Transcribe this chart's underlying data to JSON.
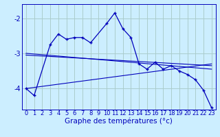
{
  "background_color": "#cceeff",
  "grid_color": "#aacccc",
  "line_color": "#0000bb",
  "xlabel": "Graphe des températures (°c)",
  "xlabel_fontsize": 7.5,
  "tick_fontsize": 6.0,
  "ytick_labels": [
    "-4",
    "-3",
    "-2"
  ],
  "ytick_values": [
    -4,
    -3,
    -2
  ],
  "xlim": [
    -0.5,
    23.5
  ],
  "ylim": [
    -4.6,
    -1.6
  ],
  "series1_x": [
    0,
    1,
    3,
    4,
    5,
    6,
    7,
    8,
    10,
    11,
    12,
    13,
    14,
    15,
    16,
    17,
    18,
    19,
    20,
    21,
    22,
    23
  ],
  "series1_y": [
    -4.0,
    -4.2,
    -2.75,
    -2.45,
    -2.6,
    -2.55,
    -2.55,
    -2.7,
    -2.15,
    -1.85,
    -2.3,
    -2.55,
    -3.3,
    -3.45,
    -3.25,
    -3.45,
    -3.35,
    -3.5,
    -3.6,
    -3.75,
    -4.05,
    -4.55
  ],
  "series2_x": [
    0,
    23
  ],
  "series2_y": [
    -4.0,
    -3.3
  ],
  "series3_x": [
    0,
    23
  ],
  "series3_y": [
    -3.05,
    -3.35
  ],
  "series4_x": [
    0,
    23
  ],
  "series4_y": [
    -3.0,
    -3.45
  ]
}
